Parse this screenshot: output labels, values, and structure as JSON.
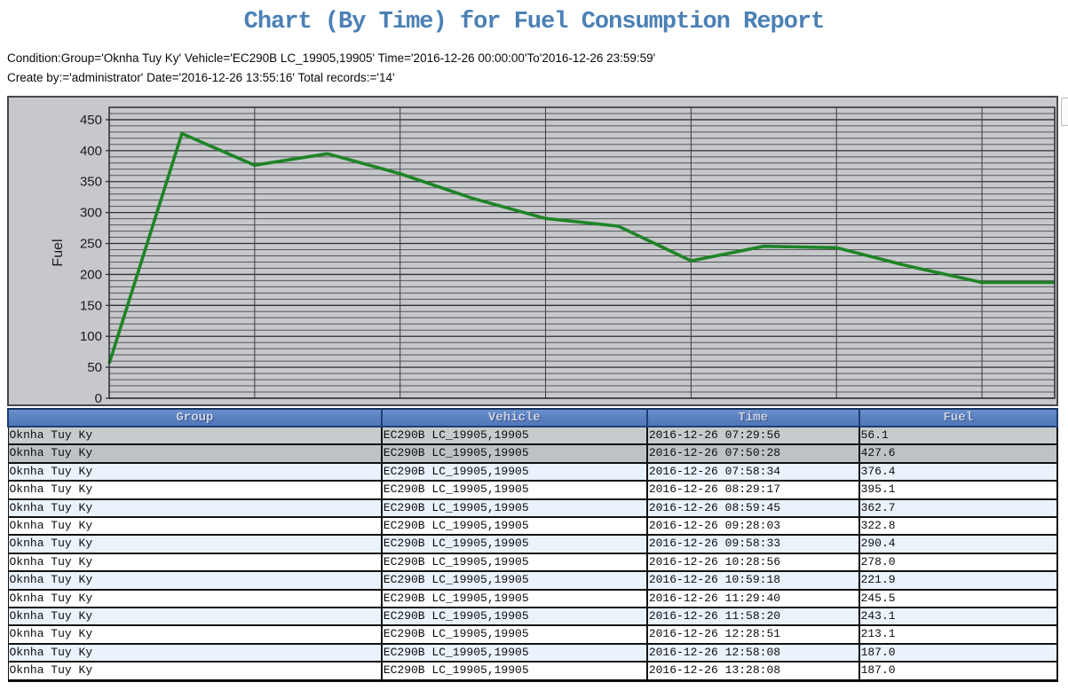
{
  "page": {
    "title": "Chart (By Time) for Fuel Consumption Report",
    "condition_line": "Condition:Group='Oknha Tuy Ky' Vehicle='EC290B LC_19905,19905' Time='2016-12-26 00:00:00'To'2016-12-26 23:59:59'",
    "create_line": "Create by:='administrator' Date='2016-12-26 13:55:16' Total records:='14'"
  },
  "chart_data": {
    "type": "line",
    "title": "",
    "xlabel": "",
    "ylabel": "Fuel",
    "ylim": [
      0,
      470
    ],
    "yticks": [
      0,
      50,
      100,
      150,
      200,
      250,
      300,
      350,
      400,
      450
    ],
    "yminor_step": 10,
    "grid": "on",
    "legend": "none",
    "line_color": "#1e8426",
    "plot_bg": "#c7c8cb",
    "categories": [
      "2016-12-26 07:29:56",
      "2016-12-26 07:50:28",
      "2016-12-26 07:58:34",
      "2016-12-26 08:29:17",
      "2016-12-26 08:59:45",
      "2016-12-26 09:28:03",
      "2016-12-26 09:58:33",
      "2016-12-26 10:28:56",
      "2016-12-26 10:59:18",
      "2016-12-26 11:29:40",
      "2016-12-26 11:58:20",
      "2016-12-26 12:28:51",
      "2016-12-26 12:58:08",
      "2016-12-26 13:28:08"
    ],
    "values": [
      56.1,
      427.6,
      376.4,
      395.1,
      362.7,
      322.8,
      290.4,
      278.0,
      221.9,
      245.5,
      243.1,
      213.1,
      187.0,
      187.0
    ],
    "vertical_grid_every_n_points": 2
  },
  "table": {
    "columns": [
      "Group",
      "Vehicle",
      "Time",
      "Fuel"
    ],
    "highlighted_rows": [
      0,
      1
    ],
    "rows": [
      {
        "group": "Oknha Tuy Ky",
        "vehicle": "EC290B LC_19905,19905",
        "time": "2016-12-26 07:29:56",
        "fuel": "56.1"
      },
      {
        "group": "Oknha Tuy Ky",
        "vehicle": "EC290B LC_19905,19905",
        "time": "2016-12-26 07:50:28",
        "fuel": "427.6"
      },
      {
        "group": "Oknha Tuy Ky",
        "vehicle": "EC290B LC_19905,19905",
        "time": "2016-12-26 07:58:34",
        "fuel": "376.4"
      },
      {
        "group": "Oknha Tuy Ky",
        "vehicle": "EC290B LC_19905,19905",
        "time": "2016-12-26 08:29:17",
        "fuel": "395.1"
      },
      {
        "group": "Oknha Tuy Ky",
        "vehicle": "EC290B LC_19905,19905",
        "time": "2016-12-26 08:59:45",
        "fuel": "362.7"
      },
      {
        "group": "Oknha Tuy Ky",
        "vehicle": "EC290B LC_19905,19905",
        "time": "2016-12-26 09:28:03",
        "fuel": "322.8"
      },
      {
        "group": "Oknha Tuy Ky",
        "vehicle": "EC290B LC_19905,19905",
        "time": "2016-12-26 09:58:33",
        "fuel": "290.4"
      },
      {
        "group": "Oknha Tuy Ky",
        "vehicle": "EC290B LC_19905,19905",
        "time": "2016-12-26 10:28:56",
        "fuel": "278.0"
      },
      {
        "group": "Oknha Tuy Ky",
        "vehicle": "EC290B LC_19905,19905",
        "time": "2016-12-26 10:59:18",
        "fuel": "221.9"
      },
      {
        "group": "Oknha Tuy Ky",
        "vehicle": "EC290B LC_19905,19905",
        "time": "2016-12-26 11:29:40",
        "fuel": "245.5"
      },
      {
        "group": "Oknha Tuy Ky",
        "vehicle": "EC290B LC_19905,19905",
        "time": "2016-12-26 11:58:20",
        "fuel": "243.1"
      },
      {
        "group": "Oknha Tuy Ky",
        "vehicle": "EC290B LC_19905,19905",
        "time": "2016-12-26 12:28:51",
        "fuel": "213.1"
      },
      {
        "group": "Oknha Tuy Ky",
        "vehicle": "EC290B LC_19905,19905",
        "time": "2016-12-26 12:58:08",
        "fuel": "187.0"
      },
      {
        "group": "Oknha Tuy Ky",
        "vehicle": "EC290B LC_19905,19905",
        "time": "2016-12-26 13:28:08",
        "fuel": "187.0"
      }
    ]
  },
  "colors": {
    "title": "#4b80b5",
    "line": "#1e8426",
    "chart_bg": "#c7c8cb",
    "grid_minor": "#55565a",
    "grid_major": "#2f3034",
    "header_bg": "#5a80c1",
    "header_text": "#ccd3e3",
    "row_highlight_1": "#c7cbce",
    "row_highlight_2": "#bec2c6",
    "row_alt_blue": "#eaf2fb",
    "row_white": "#ffffff"
  },
  "scrollbar": {
    "present": true
  }
}
